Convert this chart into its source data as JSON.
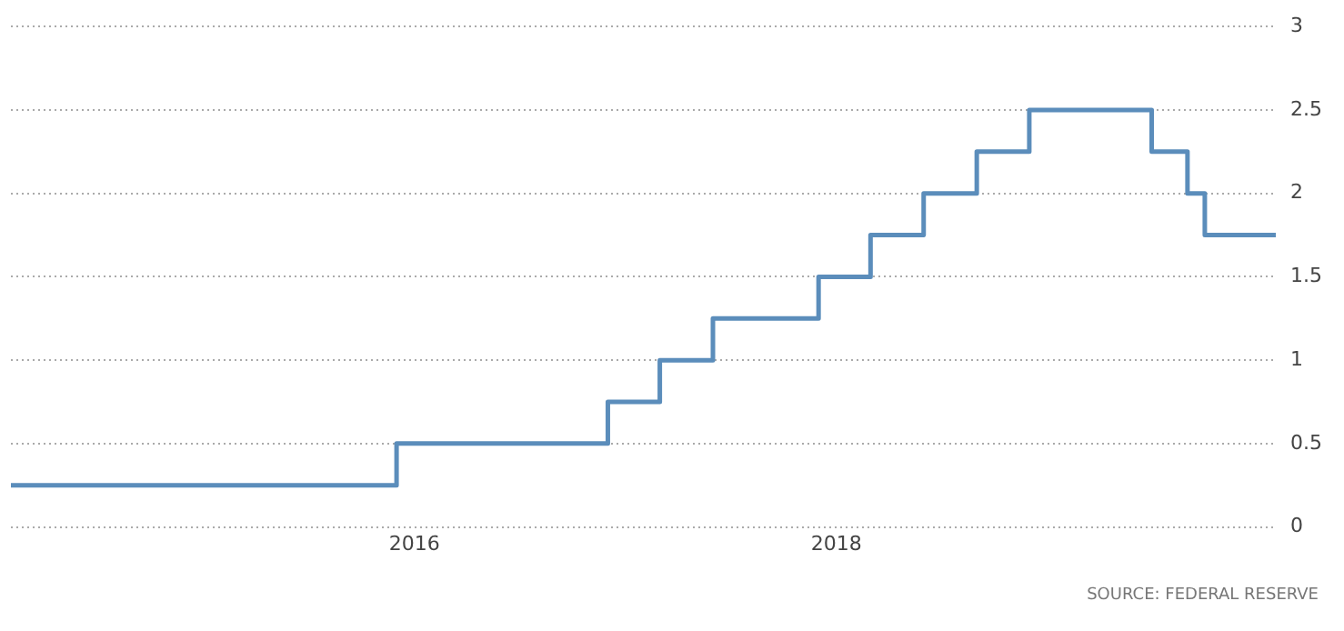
{
  "chart_data": {
    "type": "step",
    "x": [
      "2014-02",
      "2015-12",
      "2016-12",
      "2017-03",
      "2017-06",
      "2017-12",
      "2018-03",
      "2018-06",
      "2018-09",
      "2018-12",
      "2019-07",
      "2019-09",
      "2019-10",
      "2020-02"
    ],
    "series": [
      {
        "color": "#5b8dbb",
        "values": [
          0.25,
          0.5,
          0.75,
          1,
          1.25,
          1.5,
          1.75,
          2,
          2.25,
          2.5,
          2.25,
          2,
          1.75,
          1.75
        ]
      }
    ],
    "xlim": [
      "2014-02",
      "2020-02"
    ],
    "xticks": [
      {
        "value": "2016",
        "label": "2016"
      },
      {
        "value": "2018",
        "label": "2018"
      }
    ],
    "ylim": [
      0,
      3
    ],
    "yticks": [
      0,
      0.5,
      1,
      1.5,
      2,
      2.5,
      3
    ],
    "grid": "y",
    "legend": false,
    "marker": "none",
    "annotations": [
      "SOURCE: FEDERAL RESERVE"
    ]
  }
}
